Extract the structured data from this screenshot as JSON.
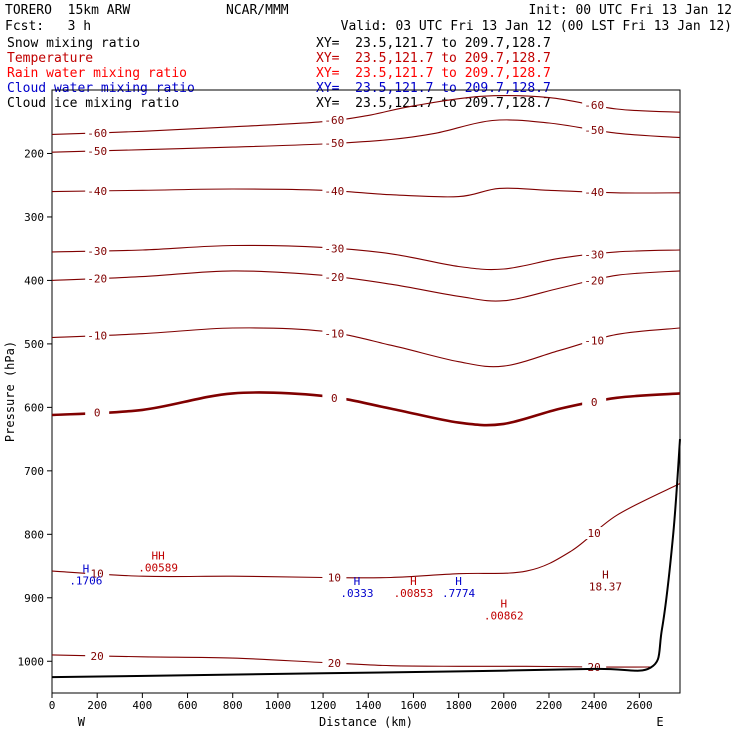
{
  "header": {
    "model": "TORERO  15km ARW",
    "center": "NCAR/MMM",
    "init": "Init: 00 UTC Fri 13 Jan 12",
    "fcst": "Fcst:   3 h",
    "valid": "Valid: 03 UTC Fri 13 Jan 12 (00 LST Fri 13 Jan 12)"
  },
  "legend": [
    {
      "label": "Snow mixing ratio",
      "xy": "XY=  23.5,121.7 to 209.7,128.7",
      "color": "#000000"
    },
    {
      "label": "Temperature",
      "xy": "XY=  23.5,121.7 to 209.7,128.7",
      "color": "#c00000"
    },
    {
      "label": "Rain water mixing ratio",
      "xy": "XY=  23.5,121.7 to 209.7,128.7",
      "color": "#ff0000"
    },
    {
      "label": "Cloud water mixing ratio",
      "xy": "XY=  23.5,121.7 to 209.7,128.7",
      "color": "#0000cc"
    },
    {
      "label": "Cloud ice mixing ratio",
      "xy": "XY=  23.5,121.7 to 209.7,128.7",
      "color": "#000000"
    }
  ],
  "chart_data": {
    "type": "contour",
    "xlabel": "Distance (km)",
    "ylabel": "Pressure (hPa)",
    "x_range": [
      0,
      2780
    ],
    "y_range": [
      100,
      1050
    ],
    "x_ticks": [
      0,
      200,
      400,
      600,
      800,
      1000,
      1200,
      1400,
      1600,
      1800,
      2000,
      2200,
      2400,
      2600
    ],
    "y_ticks": [
      200,
      300,
      400,
      500,
      600,
      700,
      800,
      900,
      1000
    ],
    "left_end_label": "W",
    "right_end_label": "E",
    "temperature_color": "#800000",
    "freezing_line_value": "0",
    "isotherms": [
      {
        "value": -60,
        "points": [
          [
            0,
            170
          ],
          [
            400,
            165
          ],
          [
            800,
            158
          ],
          [
            1200,
            150
          ],
          [
            1400,
            140
          ],
          [
            1600,
            125
          ],
          [
            1900,
            110
          ],
          [
            2200,
            112
          ],
          [
            2500,
            130
          ],
          [
            2780,
            135
          ]
        ]
      },
      {
        "value": -50,
        "points": [
          [
            0,
            198
          ],
          [
            400,
            194
          ],
          [
            800,
            190
          ],
          [
            1200,
            185
          ],
          [
            1500,
            178
          ],
          [
            1700,
            168
          ],
          [
            1950,
            148
          ],
          [
            2200,
            152
          ],
          [
            2500,
            168
          ],
          [
            2780,
            175
          ]
        ]
      },
      {
        "value": -40,
        "points": [
          [
            0,
            260
          ],
          [
            400,
            258
          ],
          [
            800,
            256
          ],
          [
            1200,
            258
          ],
          [
            1500,
            265
          ],
          [
            1800,
            268
          ],
          [
            1980,
            255
          ],
          [
            2200,
            258
          ],
          [
            2500,
            262
          ],
          [
            2780,
            262
          ]
        ]
      },
      {
        "value": -30,
        "points": [
          [
            0,
            355
          ],
          [
            400,
            352
          ],
          [
            800,
            345
          ],
          [
            1200,
            348
          ],
          [
            1500,
            358
          ],
          [
            1800,
            378
          ],
          [
            2000,
            382
          ],
          [
            2250,
            365
          ],
          [
            2500,
            355
          ],
          [
            2780,
            352
          ]
        ]
      },
      {
        "value": -20,
        "points": [
          [
            0,
            400
          ],
          [
            400,
            394
          ],
          [
            800,
            385
          ],
          [
            1200,
            392
          ],
          [
            1500,
            406
          ],
          [
            1800,
            425
          ],
          [
            2000,
            432
          ],
          [
            2250,
            412
          ],
          [
            2500,
            392
          ],
          [
            2780,
            385
          ]
        ]
      },
      {
        "value": -10,
        "points": [
          [
            0,
            490
          ],
          [
            400,
            484
          ],
          [
            800,
            475
          ],
          [
            1200,
            480
          ],
          [
            1500,
            502
          ],
          [
            1800,
            528
          ],
          [
            2000,
            535
          ],
          [
            2250,
            510
          ],
          [
            2500,
            485
          ],
          [
            2780,
            475
          ]
        ]
      },
      {
        "value": 0,
        "points": [
          [
            0,
            612
          ],
          [
            400,
            604
          ],
          [
            800,
            578
          ],
          [
            1200,
            582
          ],
          [
            1500,
            602
          ],
          [
            1800,
            624
          ],
          [
            2000,
            626
          ],
          [
            2250,
            602
          ],
          [
            2500,
            585
          ],
          [
            2780,
            578
          ]
        ]
      },
      {
        "value": 10,
        "points": [
          [
            0,
            858
          ],
          [
            400,
            866
          ],
          [
            800,
            866
          ],
          [
            1200,
            868
          ],
          [
            1500,
            868
          ],
          [
            1800,
            862
          ],
          [
            2100,
            858
          ],
          [
            2300,
            826
          ],
          [
            2500,
            770
          ],
          [
            2780,
            720
          ]
        ]
      },
      {
        "value": 20,
        "points": [
          [
            0,
            990
          ],
          [
            400,
            993
          ],
          [
            800,
            995
          ],
          [
            1200,
            1002
          ],
          [
            1500,
            1007
          ],
          [
            1800,
            1008
          ],
          [
            2100,
            1008
          ],
          [
            2400,
            1009
          ],
          [
            2650,
            1009
          ]
        ]
      }
    ],
    "ground_surface": [
      [
        0,
        1025
      ],
      [
        600,
        1022
      ],
      [
        1200,
        1019
      ],
      [
        1800,
        1016
      ],
      [
        2400,
        1012
      ],
      [
        2650,
        1010
      ],
      [
        2700,
        950
      ],
      [
        2750,
        800
      ],
      [
        2780,
        650
      ]
    ],
    "maxima": [
      {
        "label": "H",
        "value": ".1706",
        "x": 150,
        "y": 860,
        "color": "#0000cc"
      },
      {
        "label": "HH",
        "value": ".00589",
        "x": 470,
        "y": 840,
        "color": "#c00000"
      },
      {
        "label": "H",
        "value": ".0333",
        "x": 1350,
        "y": 880,
        "color": "#0000cc"
      },
      {
        "label": "H",
        "value": ".00853",
        "x": 1600,
        "y": 880,
        "color": "#c00000"
      },
      {
        "label": "H",
        "value": ".7774",
        "x": 1800,
        "y": 880,
        "color": "#0000cc"
      },
      {
        "label": "H",
        "value": ".00862",
        "x": 2000,
        "y": 915,
        "color": "#c00000"
      },
      {
        "label": "H",
        "value": "18.37",
        "x": 2450,
        "y": 870,
        "color": "#800000"
      }
    ]
  }
}
